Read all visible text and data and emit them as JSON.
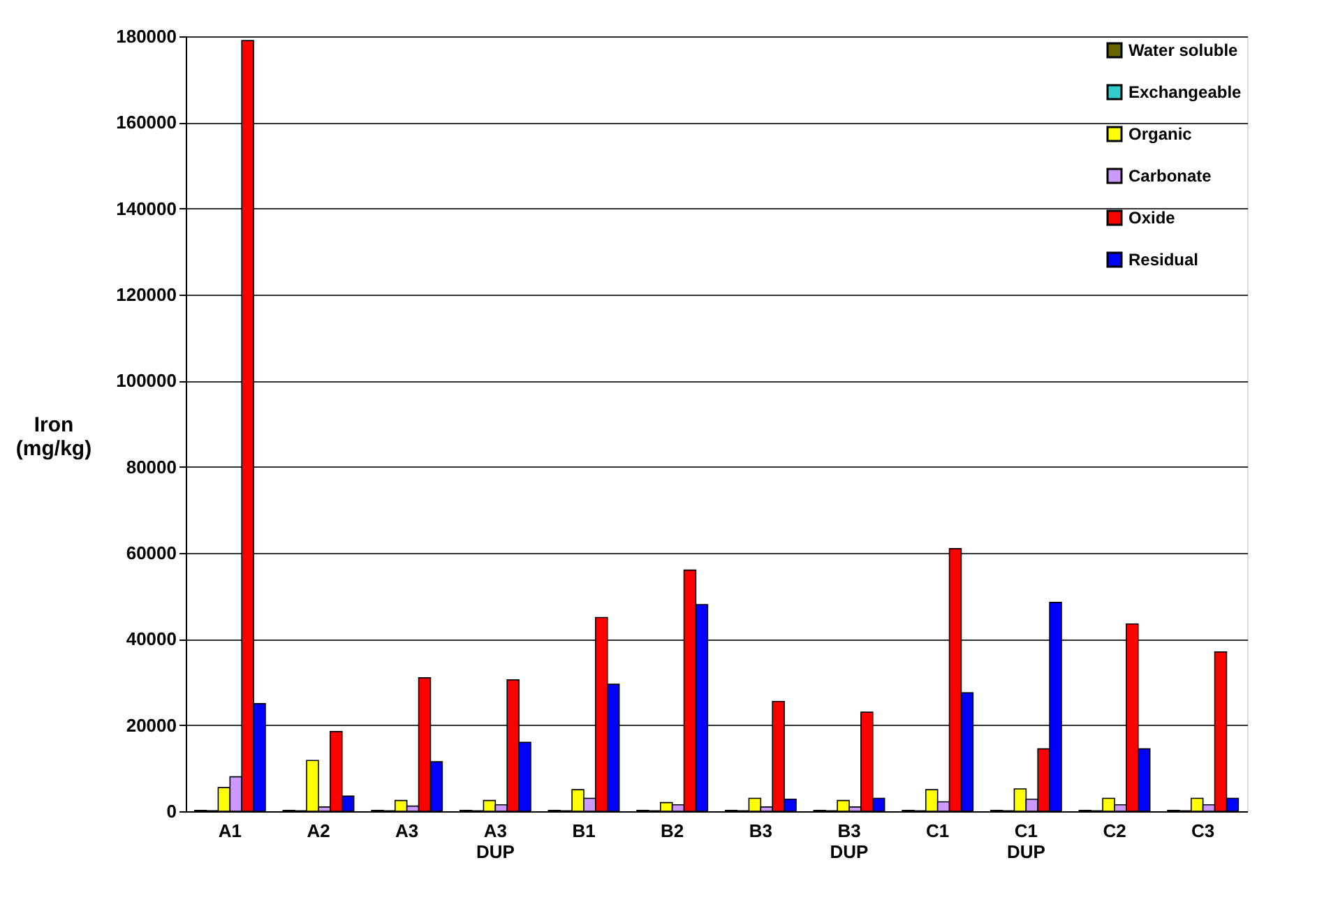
{
  "chart_data": {
    "type": "bar",
    "ylabel": "Iron (mg/kg)",
    "categories": [
      "A1",
      "A2",
      "A3",
      "A3 DUP",
      "B1",
      "B2",
      "B3",
      "B3 DUP",
      "C1",
      "C1 DUP",
      "C2",
      "C3"
    ],
    "series": [
      {
        "name": "Water soluble",
        "color": "#666600",
        "values": [
          200,
          200,
          200,
          200,
          200,
          200,
          200,
          200,
          200,
          200,
          200,
          200
        ]
      },
      {
        "name": "Exchangeable",
        "color": "#33cccc",
        "values": [
          100,
          100,
          100,
          100,
          100,
          100,
          100,
          100,
          100,
          100,
          100,
          100
        ]
      },
      {
        "name": "Organic",
        "color": "#ffff00",
        "values": [
          5500,
          11800,
          2500,
          2500,
          5000,
          2000,
          3000,
          2500,
          5000,
          5200,
          3000,
          3000
        ]
      },
      {
        "name": "Carbonate",
        "color": "#cc99ff",
        "values": [
          8000,
          1000,
          1200,
          1500,
          3000,
          1500,
          1000,
          1000,
          2200,
          2800,
          1500,
          1500
        ]
      },
      {
        "name": "Oxide",
        "color": "#ff0000",
        "values": [
          179000,
          18500,
          31000,
          30500,
          45000,
          56000,
          25500,
          23000,
          61000,
          14500,
          43500,
          37000
        ]
      },
      {
        "name": "Residual",
        "color": "#0000ff",
        "values": [
          25000,
          3500,
          11500,
          16000,
          29500,
          48000,
          2800,
          3000,
          27500,
          48500,
          14500,
          3000
        ]
      }
    ],
    "ylim": [
      0,
      180000
    ],
    "yticks": [
      0,
      20000,
      40000,
      60000,
      80000,
      100000,
      120000,
      140000,
      160000,
      180000
    ],
    "grid": "y",
    "legend": "top right"
  }
}
